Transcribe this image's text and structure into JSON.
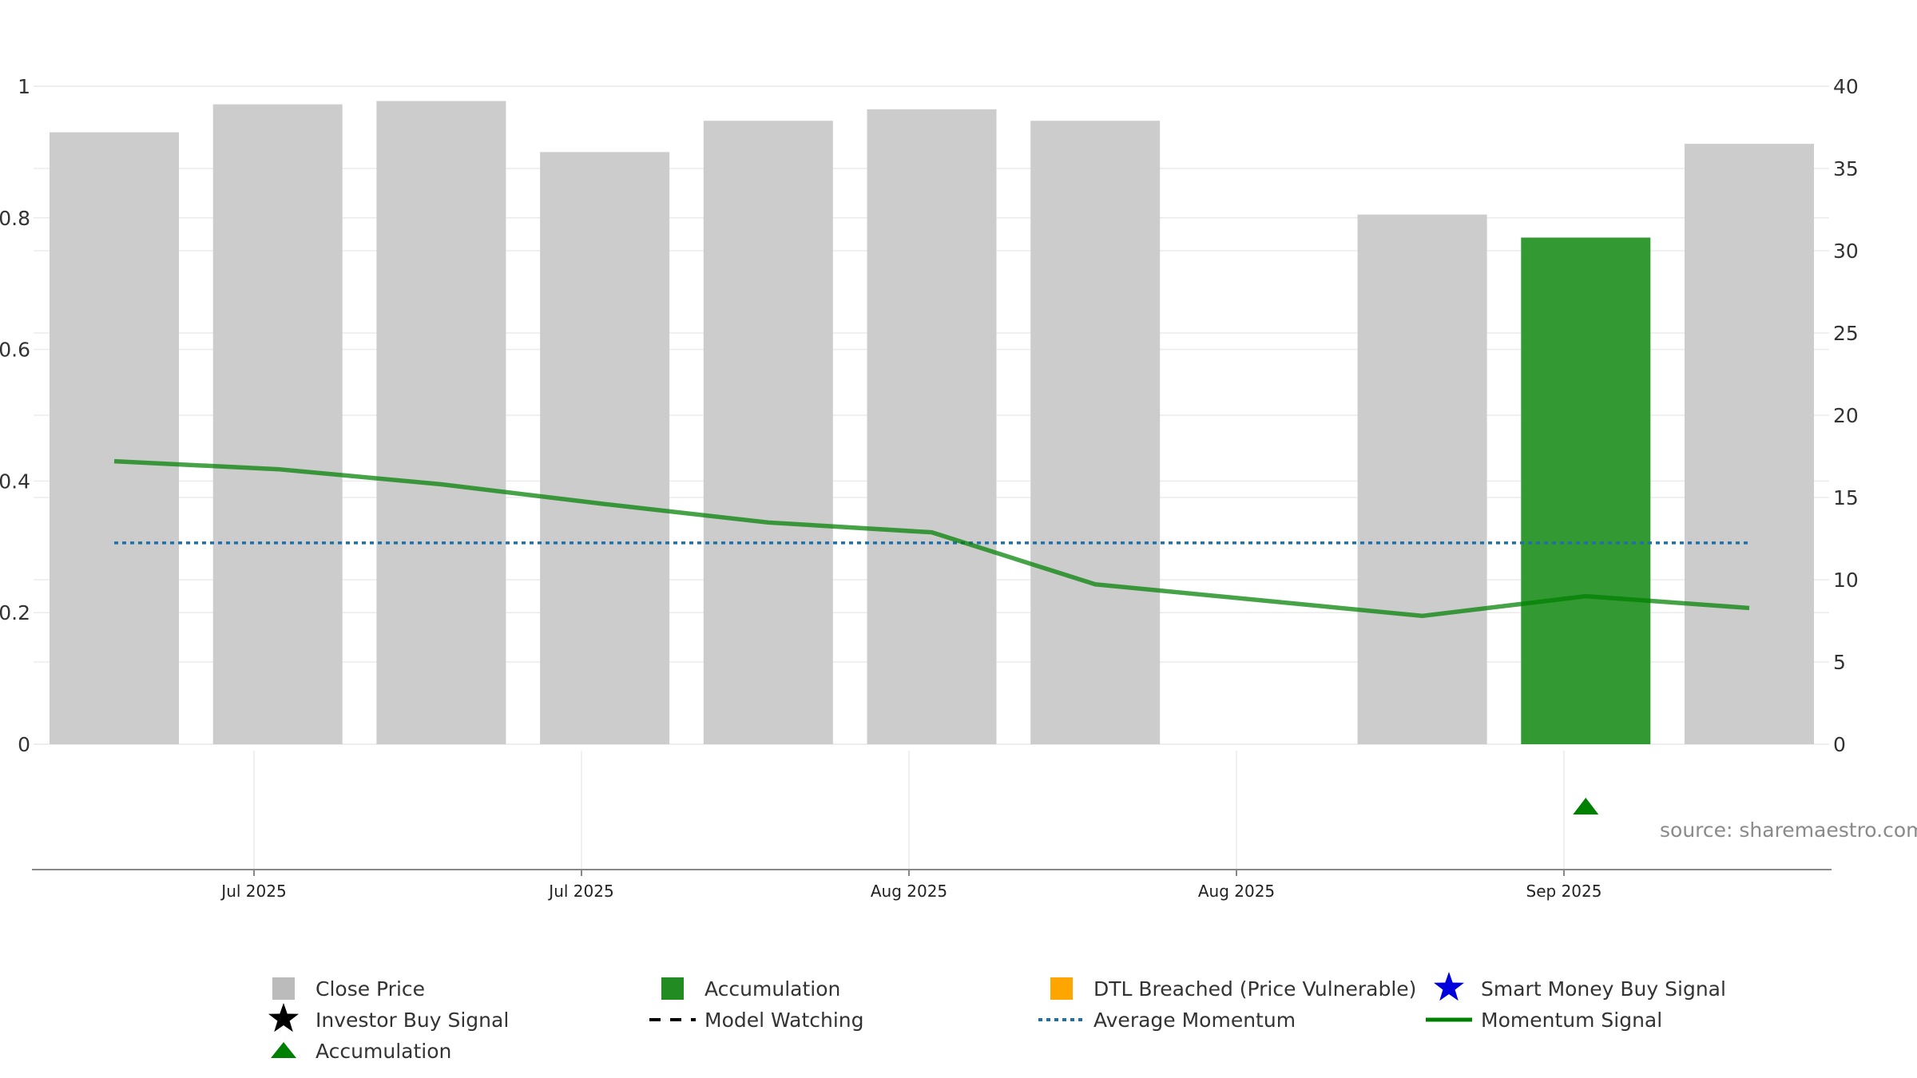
{
  "chart_data": {
    "type": "bar",
    "x_tick_labels": [
      "Jul 2025",
      "Jul 2025",
      "Aug 2025",
      "Aug 2025",
      "Sep 2025"
    ],
    "left_axis": {
      "ylim": [
        0,
        1
      ],
      "ticks": [
        "0",
        "0.2",
        "0.4",
        "0.6",
        "0.8",
        "1"
      ]
    },
    "right_axis": {
      "ylim": [
        0,
        40
      ],
      "ticks": [
        "0",
        "5",
        "10",
        "15",
        "20",
        "25",
        "30",
        "35",
        "40"
      ]
    },
    "bars": {
      "name": "Close Price",
      "axis": "right",
      "values": [
        37.2,
        38.9,
        39.1,
        36.0,
        37.9,
        38.6,
        37.9,
        null,
        32.2,
        30.8,
        36.5
      ],
      "colors": [
        "#cccccc",
        "#cccccc",
        "#cccccc",
        "#cccccc",
        "#cccccc",
        "#cccccc",
        "#cccccc",
        null,
        "#cccccc",
        "#339933",
        "#cccccc"
      ]
    },
    "momentum_signal": {
      "name": "Momentum Signal",
      "axis": "left",
      "values": [
        0.43,
        0.418,
        0.395,
        0.365,
        0.337,
        0.322,
        0.243,
        0.219,
        0.195,
        0.225,
        0.207
      ]
    },
    "average_momentum": {
      "name": "Average Momentum",
      "axis": "left",
      "value": 0.306
    },
    "markers": [
      {
        "type": "Accumulation",
        "bar_index": 9
      }
    ],
    "grid": true,
    "legend_position": "bottom"
  },
  "legend": [
    {
      "label": "Close Price",
      "icon": "square",
      "color": "#bbbbbb"
    },
    {
      "label": "Accumulation",
      "icon": "square",
      "color": "#228b22"
    },
    {
      "label": "DTL Breached (Price Vulnerable)",
      "icon": "square",
      "color": "#ffa500"
    },
    {
      "label": "Smart Money Buy Signal",
      "icon": "star",
      "color": "#0000dd"
    },
    {
      "label": "Investor Buy Signal",
      "icon": "star",
      "color": "#000000"
    },
    {
      "label": "Model Watching",
      "icon": "dashed-line",
      "color": "#000000"
    },
    {
      "label": "Average Momentum",
      "icon": "dotted-line",
      "color": "#1f6fa8"
    },
    {
      "label": "Momentum Signal",
      "icon": "solid-line",
      "color": "#008000"
    },
    {
      "label": "Accumulation",
      "icon": "triangle",
      "color": "#008000"
    }
  ],
  "source": "source: sharemaestro.com",
  "colors": {
    "bar_default": "#cccccc",
    "bar_accumulation": "#339933",
    "momentum_line": "#008000",
    "average_line": "#1f6fa8",
    "marker_accumulation": "#008000",
    "grid": "#ebebeb"
  }
}
